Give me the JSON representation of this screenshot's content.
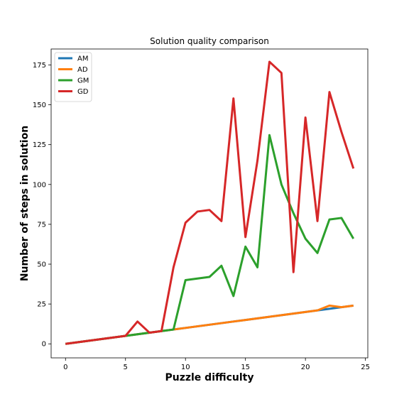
{
  "chart_data": {
    "type": "line",
    "title": "Solution quality comparison",
    "xlabel": "Puzzle difficulty",
    "ylabel": "Number of steps in solution",
    "xlim": [
      -1.2,
      25.2
    ],
    "ylim": [
      -8.8,
      185.0
    ],
    "xticks": [
      0,
      5,
      10,
      15,
      20,
      25
    ],
    "yticks": [
      0,
      25,
      50,
      75,
      100,
      125,
      150,
      175
    ],
    "grid": false,
    "legend_position": "top-left",
    "x": [
      0,
      1,
      2,
      3,
      4,
      5,
      6,
      7,
      8,
      9,
      10,
      11,
      12,
      13,
      14,
      15,
      16,
      17,
      18,
      19,
      20,
      21,
      22,
      23,
      24
    ],
    "series": [
      {
        "name": "AM",
        "color": "#1f77b4",
        "values": [
          0,
          1,
          2,
          3,
          4,
          5,
          6,
          7,
          8,
          9,
          10,
          11,
          12,
          13,
          14,
          15,
          16,
          17,
          18,
          19,
          20,
          21,
          22,
          23,
          24
        ]
      },
      {
        "name": "AD",
        "color": "#ff7f0e",
        "values": [
          0,
          1,
          2,
          3,
          4,
          5,
          6,
          7,
          8,
          9,
          10,
          11,
          12,
          13,
          14,
          15,
          16,
          17,
          18,
          19,
          20,
          21,
          24,
          23,
          24
        ]
      },
      {
        "name": "GM",
        "color": "#2ca02c",
        "values": [
          0,
          1,
          2,
          3,
          4,
          5,
          6,
          7,
          8,
          9,
          40,
          41,
          42,
          49,
          30,
          61,
          48,
          131,
          100,
          82,
          66,
          57,
          78,
          79,
          66
        ]
      },
      {
        "name": "GD",
        "color": "#d62728",
        "values": [
          0,
          1,
          2,
          3,
          4,
          5,
          14,
          7,
          8,
          48,
          76,
          83,
          84,
          77,
          154,
          67,
          115,
          177,
          170,
          45,
          142,
          77,
          158,
          133,
          110
        ]
      }
    ]
  }
}
